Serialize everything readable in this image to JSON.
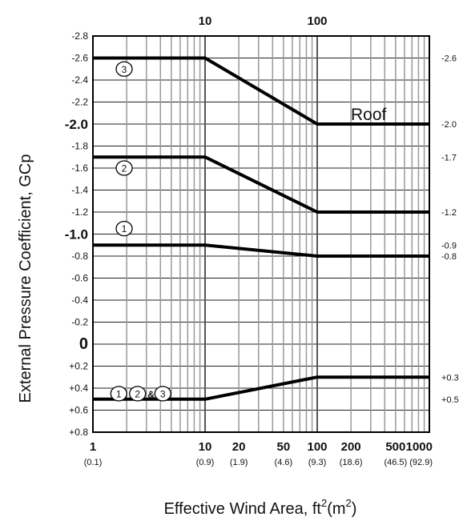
{
  "chart_data": {
    "type": "line",
    "title": "",
    "region_label": "Roof",
    "xlabel_parts": {
      "main": "Effective Wind Area, ft",
      "sup1": "2",
      "paren": "(m",
      "sup2": "2",
      "close": ")"
    },
    "ylabel": "External Pressure Coefficient, GCp",
    "x_scale": "log",
    "xlim": [
      1,
      1000
    ],
    "ylim": [
      -2.8,
      0.8
    ],
    "y_inverted": true,
    "grid": true,
    "x_ticks": [
      {
        "value": 1,
        "label": "1",
        "metric": "(0.1)"
      },
      {
        "value": 10,
        "label": "10",
        "metric": "(0.9)"
      },
      {
        "value": 20,
        "label": "20",
        "metric": "(1.9)"
      },
      {
        "value": 50,
        "label": "50",
        "metric": "(4.6)"
      },
      {
        "value": 100,
        "label": "100",
        "metric": "(9.3)"
      },
      {
        "value": 200,
        "label": "200",
        "metric": "(18.6)"
      },
      {
        "value": 500,
        "label": "500",
        "metric": "(46.5)"
      },
      {
        "value": 1000,
        "label": "1000",
        "metric": "(92.9)"
      }
    ],
    "top_ticks": [
      {
        "value": 10,
        "label": "10"
      },
      {
        "value": 100,
        "label": "100"
      }
    ],
    "y_ticks": [
      {
        "value": -2.8,
        "label": "-2.8"
      },
      {
        "value": -2.6,
        "label": "-2.6"
      },
      {
        "value": -2.4,
        "label": "-2.4"
      },
      {
        "value": -2.2,
        "label": "-2.2"
      },
      {
        "value": -2.0,
        "label": "-2.0",
        "style": "major"
      },
      {
        "value": -1.8,
        "label": "-1.8"
      },
      {
        "value": -1.6,
        "label": "-1.6"
      },
      {
        "value": -1.4,
        "label": "-1.4"
      },
      {
        "value": -1.2,
        "label": "-1.2"
      },
      {
        "value": -1.0,
        "label": "-1.0",
        "style": "major"
      },
      {
        "value": -0.8,
        "label": "-0.8"
      },
      {
        "value": -0.6,
        "label": "-0.6"
      },
      {
        "value": -0.4,
        "label": "-0.4"
      },
      {
        "value": -0.2,
        "label": "-0.2"
      },
      {
        "value": 0,
        "label": "0",
        "style": "zero"
      },
      {
        "value": 0.2,
        "label": "+0.2"
      },
      {
        "value": 0.4,
        "label": "+0.4"
      },
      {
        "value": 0.6,
        "label": "+0.6"
      },
      {
        "value": 0.8,
        "label": "+0.8"
      }
    ],
    "right_labels": [
      {
        "value": -2.6,
        "label": "-2.6"
      },
      {
        "value": -2.0,
        "label": "-2.0"
      },
      {
        "value": -1.7,
        "label": "-1.7"
      },
      {
        "value": -1.2,
        "label": "-1.2"
      },
      {
        "value": -0.9,
        "label": "-0.9"
      },
      {
        "value": -0.8,
        "label": "-0.8"
      },
      {
        "value": 0.3,
        "label": "+0.3"
      },
      {
        "value": 0.5,
        "label": "+0.5"
      }
    ],
    "series": [
      {
        "name": "Zone 3",
        "x": [
          1,
          10,
          100,
          1000
        ],
        "y": [
          -2.6,
          -2.6,
          -2.0,
          -2.0
        ]
      },
      {
        "name": "Zone 2",
        "x": [
          1,
          10,
          100,
          1000
        ],
        "y": [
          -1.7,
          -1.7,
          -1.2,
          -1.2
        ]
      },
      {
        "name": "Zone 1",
        "x": [
          1,
          10,
          100,
          1000
        ],
        "y": [
          -0.9,
          -0.9,
          -0.8,
          -0.8
        ]
      },
      {
        "name": "Zones 1, 2 & 3 positive",
        "x": [
          1,
          10,
          100,
          1000
        ],
        "y": [
          0.5,
          0.5,
          0.3,
          0.3
        ]
      }
    ],
    "curve_labels": [
      {
        "text": "3",
        "type": "circle",
        "x": 1.9,
        "y": -2.5
      },
      {
        "text": "2",
        "type": "circle",
        "x": 1.9,
        "y": -1.6
      },
      {
        "text": "1",
        "type": "circle",
        "x": 1.9,
        "y": -1.05
      },
      {
        "text": "1",
        "type": "circle",
        "x": 1.7,
        "y": 0.45
      },
      {
        "text": "2",
        "type": "circle",
        "x": 2.5,
        "y": 0.45
      },
      {
        "text": "&",
        "type": "text",
        "x": 3.3,
        "y": 0.45
      },
      {
        "text": "3",
        "type": "circle",
        "x": 4.2,
        "y": 0.45
      }
    ]
  }
}
